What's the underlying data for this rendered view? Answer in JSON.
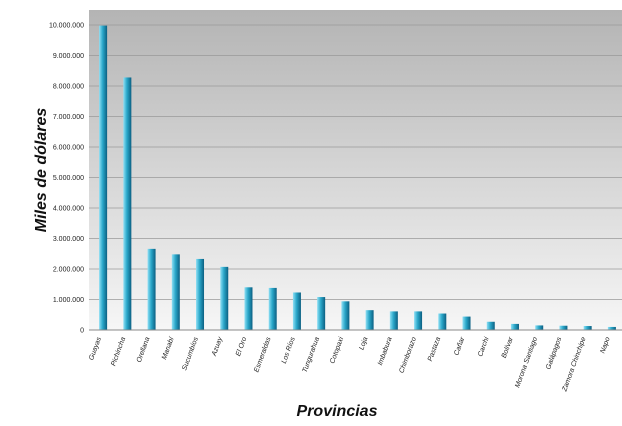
{
  "chart_data": {
    "type": "bar",
    "title": "",
    "xlabel": "Provincias",
    "ylabel": "Miles de dólares",
    "ylim": [
      0,
      10000000
    ],
    "yticks": [
      0,
      1000000,
      2000000,
      3000000,
      4000000,
      5000000,
      6000000,
      7000000,
      8000000,
      9000000,
      10000000
    ],
    "ytick_labels": [
      "0",
      "1.000.000",
      "2.000.000",
      "3.000.000",
      "4.000.000",
      "5.000.000",
      "6.000.000",
      "7.000.000",
      "8.000.000",
      "9.000.000",
      "10.000.000"
    ],
    "categories": [
      "Guayas",
      "Pichincha",
      "Orellana",
      "Manabí",
      "Sucumbíos",
      "Azuay",
      "El Oro",
      "Esmeraldas",
      "Los Ríos",
      "Tungurahua",
      "Cotopaxi",
      "Loja",
      "Imbabura",
      "Chimborazo",
      "Pastaza",
      "Cañar",
      "Carchi",
      "Bolívar",
      "Morona Santiago",
      "Galápagos",
      "Zamora Chinchipe",
      "Napo"
    ],
    "values": [
      9980000,
      8280000,
      2660000,
      2480000,
      2330000,
      2070000,
      1400000,
      1380000,
      1230000,
      1080000,
      940000,
      650000,
      610000,
      610000,
      540000,
      440000,
      270000,
      200000,
      150000,
      140000,
      130000,
      100000
    ],
    "grid": true,
    "legend": "none",
    "colors": {
      "bar_light": "#8fe0f5",
      "bar_mid": "#2aa7c9",
      "bar_dark": "#0b5f82",
      "bg_top": "#b4b4b4",
      "bg_bottom": "#f6f6f6",
      "grid": "#9a9a9a"
    }
  }
}
